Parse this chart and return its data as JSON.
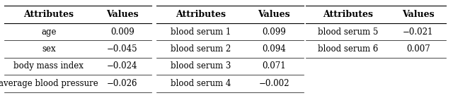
{
  "tables": [
    {
      "headers": [
        "Attributes",
        "Values"
      ],
      "rows": [
        [
          "age",
          "0.009"
        ],
        [
          "sex",
          "−0.045"
        ],
        [
          "body mass index",
          "−0.024"
        ],
        [
          "average blood pressure",
          "−0.026"
        ]
      ]
    },
    {
      "headers": [
        "Attributes",
        "Values"
      ],
      "rows": [
        [
          "blood serum 1",
          "0.099"
        ],
        [
          "blood serum 2",
          "0.094"
        ],
        [
          "blood serum 3",
          "0.071"
        ],
        [
          "blood serum 4",
          "−0.002"
        ]
      ]
    },
    {
      "headers": [
        "Attributes",
        "Values"
      ],
      "rows": [
        [
          "blood serum 5",
          "−0.021"
        ],
        [
          "blood serum 6",
          "0.007"
        ]
      ]
    }
  ],
  "background_color": "#ffffff",
  "fontsize": 8.5,
  "header_fontsize": 9.0,
  "max_rows": 4,
  "fig_width": 6.4,
  "fig_height": 1.39,
  "dpi": 100
}
